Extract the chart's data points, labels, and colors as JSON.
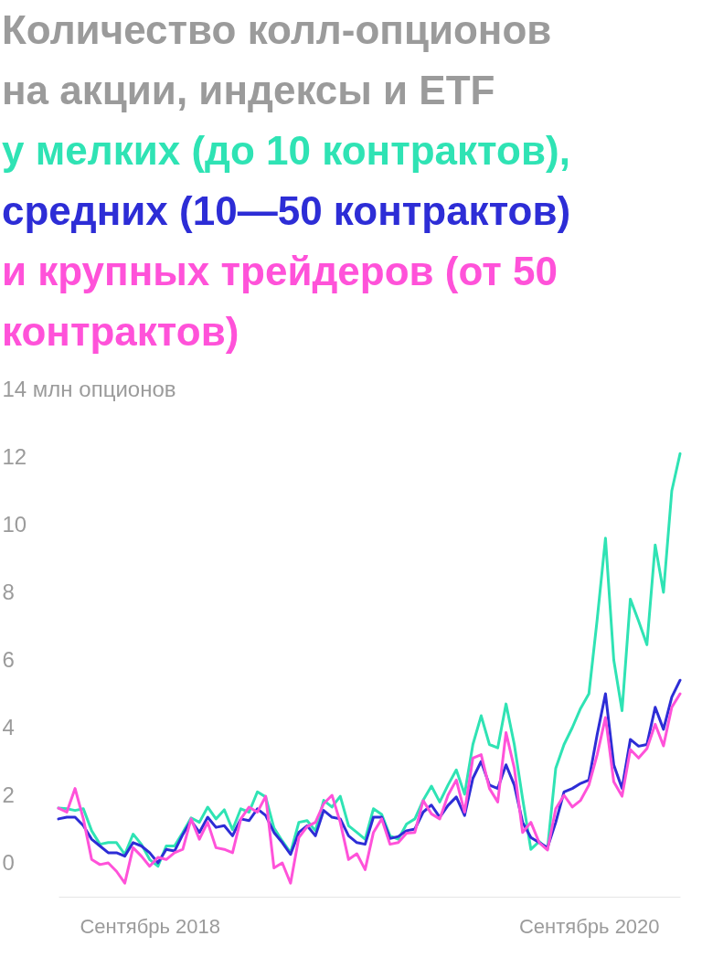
{
  "chart_data": {
    "type": "line",
    "title": "Количество колл-опционов на акции, индексы и ETF",
    "categories": [
      null,
      null,
      null,
      null,
      null,
      null,
      null,
      null,
      null,
      null,
      null,
      "Сентябрь 2018",
      null,
      null,
      null,
      null,
      null,
      null,
      null,
      null,
      null,
      null,
      null,
      null,
      null,
      null,
      null,
      null,
      null,
      null,
      null,
      null,
      null,
      null,
      null,
      null,
      null,
      null,
      null,
      null,
      null,
      null,
      null,
      null,
      null,
      null,
      null,
      null,
      null,
      null,
      null,
      null,
      null,
      null,
      null,
      null,
      null,
      null,
      null,
      null,
      null,
      null,
      null,
      null,
      "Сентябрь 2020",
      null,
      null,
      null,
      null,
      null,
      null,
      null,
      null,
      null,
      null,
      null
    ],
    "series": [
      {
        "name": "у мелких (до 10 контрактов),",
        "color": "#2fe3b4",
        "values": [
          1.62,
          1.6,
          1.55,
          1.6,
          0.95,
          0.55,
          0.6,
          0.6,
          0.25,
          0.85,
          0.55,
          0.1,
          -0.1,
          0.5,
          0.5,
          0.9,
          1.33,
          1.2,
          1.65,
          1.3,
          1.57,
          0.98,
          1.6,
          1.5,
          2.1,
          1.95,
          1.03,
          0.65,
          0.3,
          1.2,
          1.25,
          0.95,
          1.85,
          1.65,
          1.97,
          1.1,
          0.9,
          0.7,
          1.6,
          1.43,
          0.8,
          0.7,
          1.15,
          1.3,
          1.85,
          2.27,
          1.8,
          2.3,
          2.75,
          2.03,
          3.5,
          4.35,
          3.5,
          3.4,
          4.7,
          3.5,
          1.9,
          0.4,
          0.63,
          0.4,
          2.8,
          3.5,
          4.0,
          4.57,
          5.0,
          7.2,
          9.6,
          6.0,
          4.5,
          7.8,
          7.15,
          6.45,
          9.4,
          8.0,
          11.0,
          12.1
        ]
      },
      {
        "name": "средних (10—50 контрактов)",
        "color": "#2d2dd6",
        "values": [
          1.3,
          1.35,
          1.35,
          1.1,
          0.7,
          0.5,
          0.3,
          0.3,
          0.2,
          0.6,
          0.5,
          0.3,
          0.0,
          0.4,
          0.35,
          0.84,
          1.25,
          0.9,
          1.35,
          1.05,
          1.1,
          0.8,
          1.3,
          1.25,
          1.6,
          1.4,
          0.9,
          0.6,
          0.25,
          0.9,
          1.1,
          0.8,
          1.55,
          1.35,
          1.3,
          0.8,
          0.6,
          0.55,
          1.35,
          1.35,
          0.72,
          0.78,
          0.95,
          1.0,
          1.5,
          1.71,
          1.35,
          1.7,
          1.95,
          1.4,
          2.5,
          3.0,
          2.3,
          2.2,
          2.9,
          2.3,
          1.2,
          0.75,
          0.6,
          0.45,
          1.2,
          2.1,
          2.2,
          2.35,
          2.45,
          3.8,
          5.0,
          2.9,
          2.2,
          3.65,
          3.45,
          3.5,
          4.6,
          3.95,
          4.9,
          5.4
        ]
      },
      {
        "name": "и крупных трейдеров (от 50 контрактов)",
        "color": "#ff52d9",
        "values": [
          1.62,
          1.5,
          2.2,
          1.3,
          0.1,
          -0.05,
          0.0,
          -0.25,
          -0.6,
          0.45,
          0.2,
          -0.1,
          0.16,
          0.1,
          0.3,
          0.4,
          1.3,
          0.7,
          1.2,
          0.45,
          0.4,
          0.3,
          1.3,
          1.65,
          1.5,
          1.97,
          -0.15,
          0.0,
          -0.6,
          0.75,
          1.07,
          1.2,
          1.75,
          2.0,
          1.2,
          0.1,
          0.27,
          -0.2,
          0.9,
          1.3,
          0.55,
          0.6,
          0.88,
          0.9,
          1.84,
          1.45,
          1.3,
          2.0,
          2.45,
          1.5,
          3.1,
          3.2,
          2.2,
          1.8,
          3.85,
          2.8,
          0.9,
          1.2,
          0.6,
          0.38,
          1.6,
          2.0,
          1.65,
          1.85,
          2.3,
          3.2,
          4.3,
          2.4,
          1.97,
          3.35,
          3.1,
          3.38,
          4.1,
          3.46,
          4.6,
          5.0
        ]
      }
    ],
    "ylim": [
      -1,
      14
    ],
    "yticks": [
      0,
      2,
      4,
      6,
      8,
      10,
      12,
      {
        "value": 14,
        "label": "14 млн опционов"
      }
    ]
  }
}
